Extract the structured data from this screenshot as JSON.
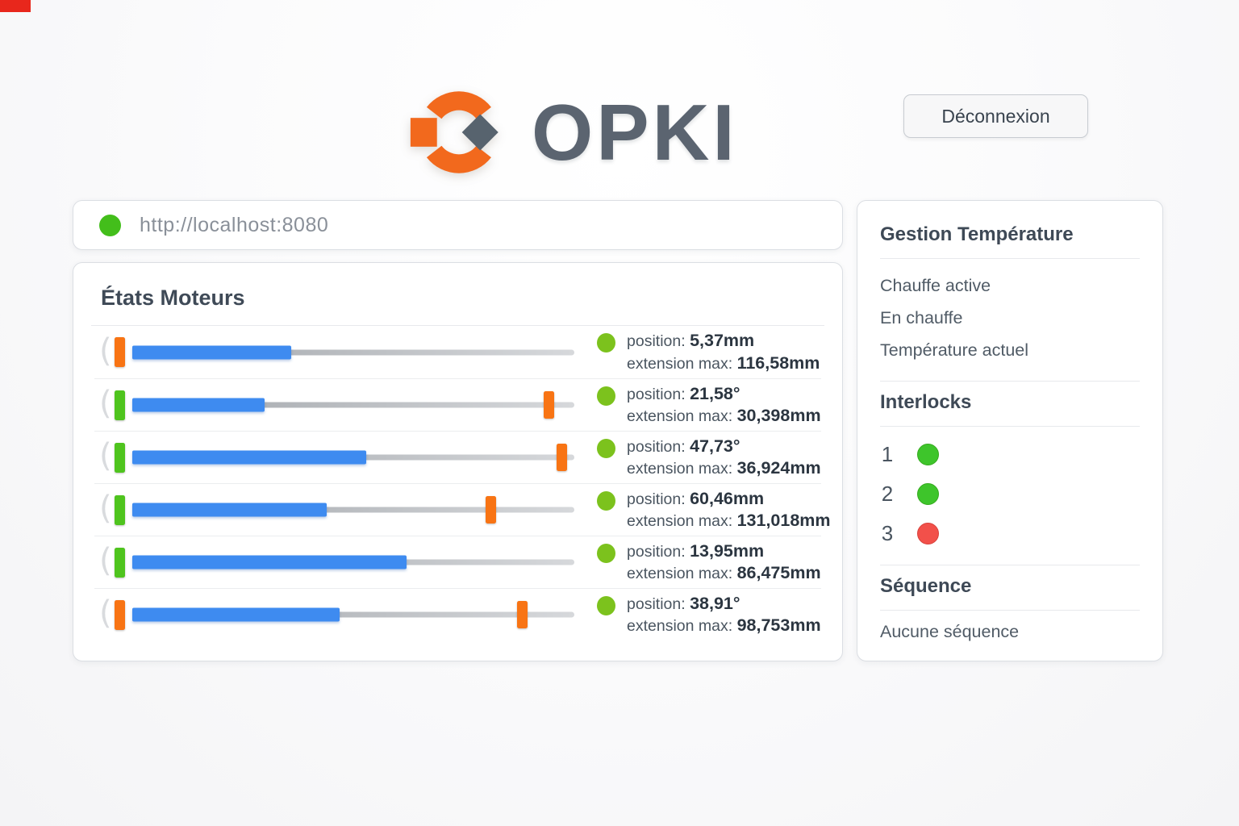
{
  "brand": {
    "name": "OPKI",
    "logo_orange": "#f2691d",
    "logo_gray": "#57636e"
  },
  "header": {
    "logout_label": "Déconnexion"
  },
  "browser": {
    "url": "http://localhost:8080",
    "status_color": "#43be1b"
  },
  "motors_panel": {
    "title": "États Moteurs",
    "position_label": "position:",
    "extension_label": "extension max:",
    "status_dot_color": "#7cc21d",
    "bar_color": "#3e8bf0",
    "marker_color": "#f87414",
    "motors": [
      {
        "position": "5,37mm",
        "extension_max": "116,58mm",
        "fill_pct": 36,
        "marker_pct": null,
        "left_marker": "orange",
        "status": "green"
      },
      {
        "position": "21,58°",
        "extension_max": "30,398mm",
        "fill_pct": 30,
        "marker_pct": 93,
        "left_marker": "green",
        "status": "green"
      },
      {
        "position": "47,73°",
        "extension_max": "36,924mm",
        "fill_pct": 53,
        "marker_pct": 96,
        "left_marker": "green",
        "status": "green"
      },
      {
        "position": "60,46mm",
        "extension_max": "131,018mm",
        "fill_pct": 44,
        "marker_pct": 80,
        "left_marker": "green",
        "status": "green"
      },
      {
        "position": "13,95mm",
        "extension_max": "86,475mm",
        "fill_pct": 62,
        "marker_pct": null,
        "left_marker": "green",
        "status": "green"
      },
      {
        "position": "38,91°",
        "extension_max": "98,753mm",
        "fill_pct": 47,
        "marker_pct": 87,
        "left_marker": "orange",
        "status": "green"
      }
    ]
  },
  "sidebar": {
    "temperature": {
      "title": "Gestion Température",
      "items": [
        "Chauffe active",
        "En chauffe",
        "Température actuel"
      ]
    },
    "interlocks": {
      "title": "Interlocks",
      "green_color": "#3ec52b",
      "red_color": "#f2504a",
      "items": [
        {
          "label": "1",
          "state": "green"
        },
        {
          "label": "2",
          "state": "green"
        },
        {
          "label": "3",
          "state": "red"
        }
      ]
    },
    "sequence": {
      "title": "Séquence",
      "status": "Aucune séquence"
    }
  }
}
